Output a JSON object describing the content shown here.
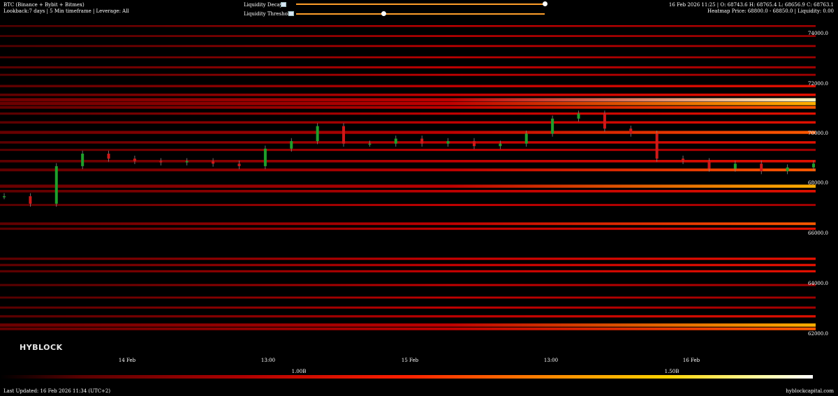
{
  "header": {
    "title": "BTC (Binance + Bybit + Bitmex)",
    "subtitle": "Lookback:7 days | 5 Min timeframe | Leverage: All",
    "ohlc": "16 Feb 2026 11:25 | O: 68743.6 H: 68765.4 L: 68656.9 C: 68763.1",
    "heatmap_info": "Heatmap Price: 68800.0 - 68850.0 | Liquidity: 0.00"
  },
  "controls": {
    "decay_label": "Liquidity Decay",
    "threshold_label": "Liquidity Threshold",
    "decay_value": 1.0,
    "threshold_value": 0.35
  },
  "y_axis": {
    "ticks": [
      "74000.0",
      "72000.0",
      "70000.0",
      "68000.0",
      "66000.0",
      "64000.0",
      "62000.0"
    ]
  },
  "x_axis": {
    "ticks": [
      "14 Feb",
      "13:00",
      "15 Feb",
      "13:00",
      "16 Feb"
    ]
  },
  "legend": {
    "labels": [
      "1.00B",
      "1.50B"
    ],
    "colors": [
      "#000000",
      "#b00000",
      "#ff2000",
      "#ff8a00",
      "#ffd400",
      "#ffffff"
    ]
  },
  "branding": {
    "logo": "HYBLOCK",
    "site": "hyblockcapital.com"
  },
  "footer": {
    "last_updated": "Last Updated: 16 Feb 2026 11:34 (UTC+2)"
  },
  "chart_data": {
    "type": "heatmap",
    "ylim": [
      61500,
      74800
    ],
    "candles_close": [
      67500,
      67200,
      68700,
      69200,
      69000,
      68900,
      68850,
      68900,
      68800,
      68700,
      69400,
      69700,
      70300,
      69600,
      69600,
      69800,
      69600,
      69700,
      69500,
      69600,
      70000,
      70600,
      70800,
      70200,
      70000,
      69000,
      68900,
      68600,
      68800,
      68500,
      68650,
      68800
    ],
    "liquidity_levels": [
      {
        "price": 74300,
        "intensity": 0.3
      },
      {
        "price": 73900,
        "intensity": 0.3
      },
      {
        "price": 73500,
        "intensity": 0.35
      },
      {
        "price": 73050,
        "intensity": 0.35
      },
      {
        "price": 72650,
        "intensity": 0.45
      },
      {
        "price": 72350,
        "intensity": 0.4
      },
      {
        "price": 71900,
        "intensity": 0.55
      },
      {
        "price": 71550,
        "intensity": 0.6
      },
      {
        "price": 71350,
        "intensity": 1.0
      },
      {
        "price": 71200,
        "intensity": 0.9
      },
      {
        "price": 71050,
        "intensity": 0.7
      },
      {
        "price": 70800,
        "intensity": 0.5
      },
      {
        "price": 70450,
        "intensity": 0.55
      },
      {
        "price": 70050,
        "intensity": 0.8
      },
      {
        "price": 69650,
        "intensity": 0.55
      },
      {
        "price": 69350,
        "intensity": 0.45
      },
      {
        "price": 68900,
        "intensity": 0.6
      },
      {
        "price": 68550,
        "intensity": 0.7
      },
      {
        "price": 67900,
        "intensity": 0.85
      },
      {
        "price": 67700,
        "intensity": 0.6
      },
      {
        "price": 67150,
        "intensity": 0.45
      },
      {
        "price": 66400,
        "intensity": 0.65
      },
      {
        "price": 66200,
        "intensity": 0.5
      },
      {
        "price": 65000,
        "intensity": 0.55
      },
      {
        "price": 64750,
        "intensity": 0.55
      },
      {
        "price": 64500,
        "intensity": 0.5
      },
      {
        "price": 63950,
        "intensity": 0.45
      },
      {
        "price": 63450,
        "intensity": 0.4
      },
      {
        "price": 63050,
        "intensity": 0.45
      },
      {
        "price": 62700,
        "intensity": 0.5
      },
      {
        "price": 62350,
        "intensity": 0.9
      },
      {
        "price": 62200,
        "intensity": 0.7
      }
    ]
  }
}
